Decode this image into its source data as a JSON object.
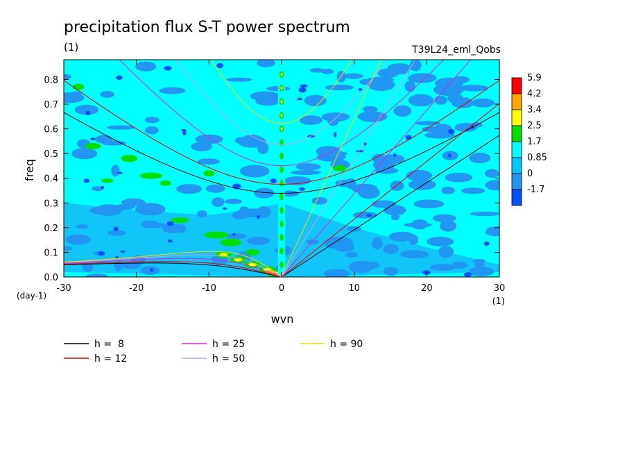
{
  "chart_data": {
    "type": "heatmap",
    "title": "precipitation flux S-T power spectrum",
    "subtitle_left": "(1)",
    "subtitle_right": "T39L24_eml_Qobs",
    "xlabel": "wvn",
    "ylabel": "freq",
    "x_unit_label": "(1)",
    "y_unit_label": "(day-1)",
    "xlim": [
      -30,
      30
    ],
    "ylim": [
      0,
      0.88
    ],
    "xticks": [
      "-30",
      "-20",
      "-10",
      "0",
      "10",
      "20",
      "30"
    ],
    "yticks": [
      "0.0",
      "0.1",
      "0.2",
      "0.3",
      "0.4",
      "0.5",
      "0.6",
      "0.7",
      "0.8"
    ],
    "colorbar": {
      "levels": [
        "5.9",
        "4.2",
        "3.4",
        "2.5",
        "1.7",
        "0.85",
        "0",
        "-1.7"
      ],
      "colors": [
        "#ff0000",
        "#ffa500",
        "#ffff00",
        "#00e000",
        "#00ffff",
        "#00c8ff",
        "#2196f3",
        "#0050ff"
      ]
    },
    "legend": [
      {
        "name": "h =  8",
        "h": 8,
        "color": "#000000"
      },
      {
        "name": "h = 12",
        "h": 12,
        "color": "#e00000"
      },
      {
        "name": "h = 25",
        "h": 25,
        "color": "#e020e0"
      },
      {
        "name": "h = 50",
        "h": 50,
        "color": "#d0a0e0"
      },
      {
        "name": "h = 90",
        "h": 90,
        "color": "#f0e000"
      }
    ]
  }
}
